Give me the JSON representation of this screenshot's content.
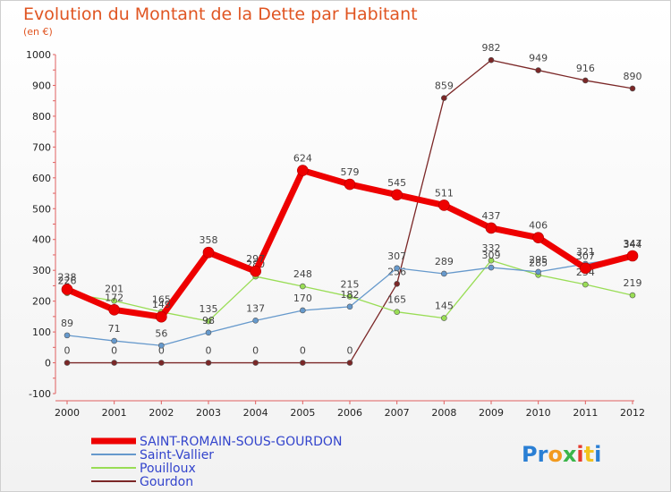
{
  "chart_data": {
    "type": "line",
    "title": "Evolution du Montant de la Dette par Habitant",
    "subtitle": "(en €)",
    "xlabel": "",
    "ylabel": "",
    "ylim": [
      -100,
      1000
    ],
    "yticks": [
      -100,
      0,
      100,
      200,
      300,
      400,
      500,
      600,
      700,
      800,
      900,
      1000
    ],
    "categories": [
      "2000",
      "2001",
      "2002",
      "2003",
      "2004",
      "2005",
      "2006",
      "2007",
      "2008",
      "2009",
      "2010",
      "2011",
      "2012"
    ],
    "grid": false,
    "legend_position": "bottom-left",
    "series": [
      {
        "name": "Gourdon",
        "color": "#7b2727",
        "values": [
          0,
          0,
          0,
          0,
          0,
          0,
          0,
          256,
          859,
          982,
          949,
          916,
          890
        ]
      },
      {
        "name": "Pouilloux",
        "color": "#99dd55",
        "values": [
          226,
          201,
          165,
          135,
          280,
          248,
          215,
          165,
          145,
          332,
          285,
          254,
          219
        ]
      },
      {
        "name": "Saint-Vallier",
        "color": "#6699cc",
        "values": [
          89,
          71,
          56,
          98,
          137,
          170,
          182,
          307,
          289,
          309,
          295,
          321,
          344
        ]
      },
      {
        "name": "SAINT-ROMAIN-SOUS-GOURDON",
        "color": "#ee0000",
        "values": [
          238,
          172,
          149,
          358,
          297,
          624,
          579,
          545,
          511,
          437,
          406,
          307,
          347
        ]
      }
    ]
  },
  "branding": {
    "logo_text": "Proxiti"
  }
}
